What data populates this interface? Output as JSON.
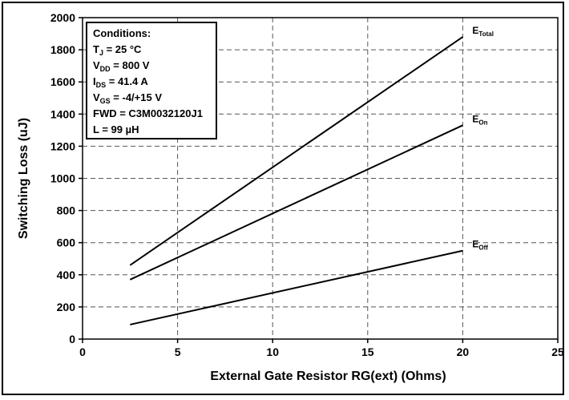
{
  "chart_data": {
    "type": "line",
    "xlabel": "External Gate Resistor RG(ext) (Ohms)",
    "ylabel": "Switching Loss (uJ)",
    "xlim": [
      0,
      25
    ],
    "ylim": [
      0,
      2000
    ],
    "xticks": [
      0,
      5,
      10,
      15,
      20,
      25
    ],
    "yticks": [
      0,
      200,
      400,
      600,
      800,
      1000,
      1200,
      1400,
      1600,
      1800,
      2000
    ],
    "grid": "dashed",
    "series": [
      {
        "name": "E",
        "sub": "Total",
        "x": [
          2.5,
          20
        ],
        "y": [
          460,
          1880
        ]
      },
      {
        "name": "E",
        "sub": "On",
        "x": [
          2.5,
          20
        ],
        "y": [
          370,
          1330
        ]
      },
      {
        "name": "E",
        "sub": "Off",
        "x": [
          2.5,
          20
        ],
        "y": [
          90,
          550
        ]
      }
    ],
    "conditions": {
      "title": "Conditions:",
      "lines": [
        {
          "pre": "T",
          "sub": "J",
          "post": " = 25 °C"
        },
        {
          "pre": "V",
          "sub": "DD",
          "post": " =  800 V"
        },
        {
          "pre": "I",
          "sub": "DS",
          "post": " =  41.4 A"
        },
        {
          "pre": "V",
          "sub": "GS",
          "post": " = -4/+15 V"
        },
        {
          "pre": "FWD = C3M0032120J1",
          "sub": "",
          "post": ""
        },
        {
          "pre": "L = 99 µH",
          "sub": "",
          "post": ""
        }
      ]
    }
  }
}
